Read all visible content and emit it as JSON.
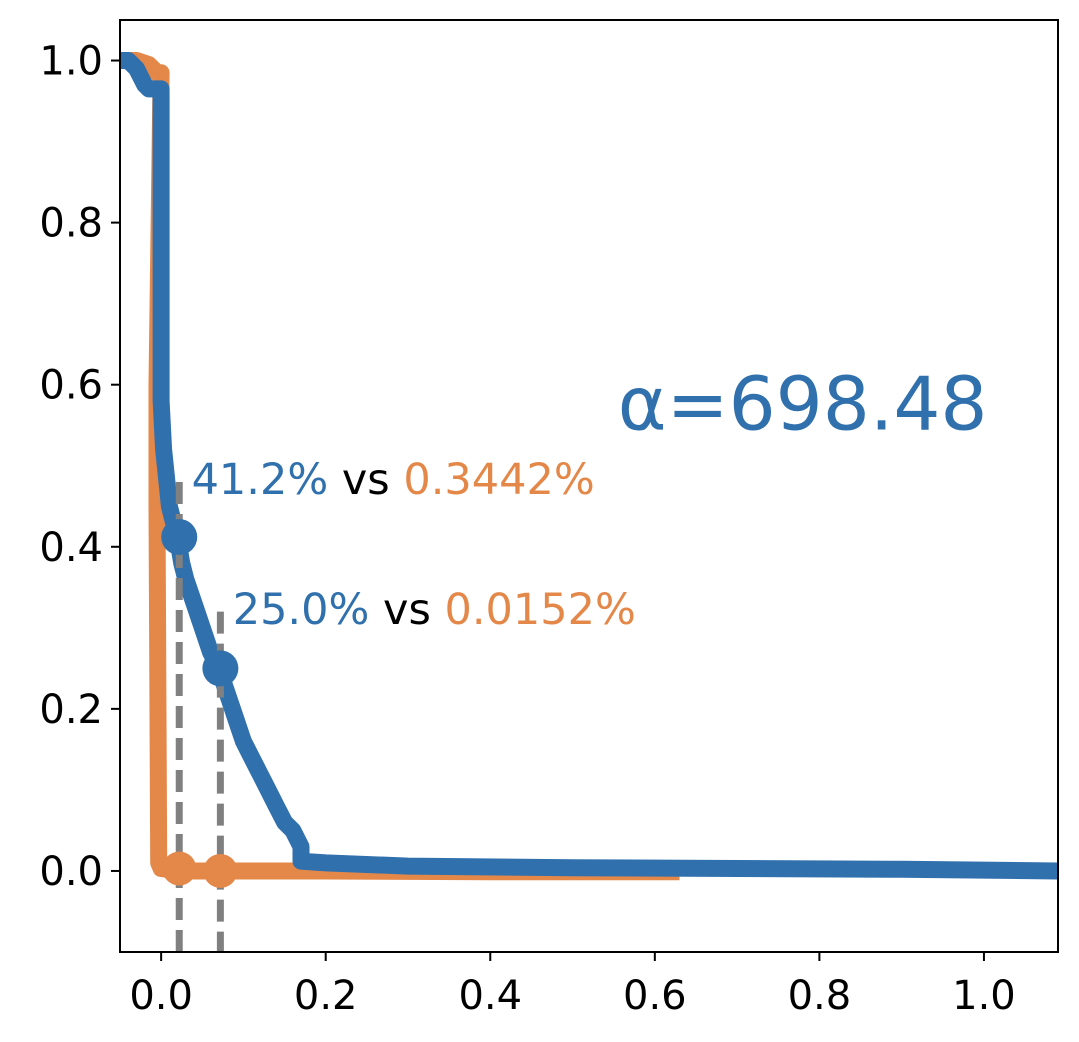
{
  "chart_data": {
    "type": "line",
    "title": "",
    "xlabel": "",
    "ylabel": "",
    "xlim": [
      -0.05,
      1.09
    ],
    "ylim": [
      -0.1,
      1.05
    ],
    "xticks": [
      "0.0",
      "0.2",
      "0.4",
      "0.6",
      "0.8",
      "1.0"
    ],
    "yticks": [
      "0.0",
      "0.2",
      "0.4",
      "0.6",
      "0.8",
      "1.0"
    ],
    "grid": false,
    "legend": "none",
    "colors": {
      "blue": "#3070ad",
      "orange": "#e4884a",
      "threshold": "#808080"
    },
    "series": [
      {
        "color": "blue",
        "x": [
          -0.05,
          -0.04,
          -0.03,
          -0.02,
          -0.015,
          -0.01,
          -0.005,
          0.0,
          0.0,
          0.003,
          0.006,
          0.01,
          0.015,
          0.02,
          0.025,
          0.03,
          0.04,
          0.05,
          0.06,
          0.07,
          0.08,
          0.09,
          0.1,
          0.11,
          0.12,
          0.13,
          0.14,
          0.15,
          0.16,
          0.17,
          0.17,
          0.2,
          0.3,
          0.5,
          0.7,
          0.9,
          1.09
        ],
        "y": [
          1.0,
          1.0,
          0.99,
          0.97,
          0.965,
          0.965,
          0.965,
          0.965,
          0.58,
          0.52,
          0.49,
          0.45,
          0.43,
          0.41,
          0.38,
          0.36,
          0.33,
          0.3,
          0.27,
          0.25,
          0.22,
          0.19,
          0.16,
          0.14,
          0.12,
          0.1,
          0.08,
          0.06,
          0.05,
          0.03,
          0.012,
          0.01,
          0.006,
          0.004,
          0.003,
          0.002,
          0.0
        ]
      },
      {
        "color": "orange",
        "x": [
          -0.05,
          -0.03,
          -0.015,
          -0.01,
          -0.005,
          0.0,
          -0.005,
          -0.005,
          -0.003,
          0.0,
          0.02,
          0.07,
          0.2,
          0.4,
          0.63
        ],
        "y": [
          1.0,
          1.0,
          0.995,
          0.99,
          0.985,
          0.985,
          0.6,
          0.45,
          0.01,
          0.003,
          0.0,
          0.0,
          0.0,
          -0.001,
          -0.001
        ]
      }
    ],
    "markers": [
      {
        "x": 0.022,
        "blue_y": 0.412,
        "orange_y": 0.003
      },
      {
        "x": 0.072,
        "blue_y": 0.25,
        "orange_y": 0.0
      }
    ],
    "annotations": [
      {
        "blue_text": "41.2%",
        "mid_text": "vs",
        "orange_text": "0.3442%",
        "x": 0.037,
        "y": 0.465
      },
      {
        "blue_text": "25.0%",
        "mid_text": "vs",
        "orange_text": "0.0152%",
        "x": 0.087,
        "y": 0.305
      }
    ],
    "alpha_label": {
      "text": "α=698.48",
      "x": 0.555,
      "y": 0.545
    }
  }
}
